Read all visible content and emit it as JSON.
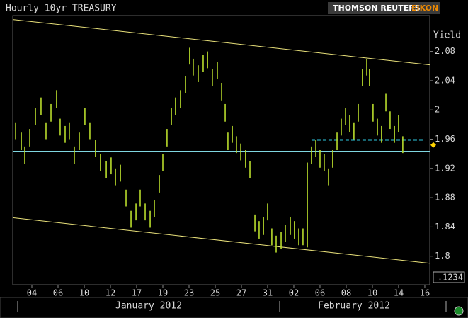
{
  "chart_data": {
    "type": "hilo",
    "title": "Hourly 10yr TREASURY",
    "brand": [
      "THOMSON REUTERS",
      "EIKON"
    ],
    "y_label": "Yield",
    "months": [
      "January 2012",
      "February 2012"
    ],
    "decimal_box": ".1234",
    "color": "#b9dc2c",
    "xlim": [
      -0.46,
      31.38
    ],
    "ylim": [
      1.761,
      2.129
    ],
    "yticks": [
      1.8,
      1.84,
      1.88,
      1.92,
      1.96,
      2,
      2.04,
      2.08
    ],
    "xticks": [
      {
        "value": 1,
        "label": "04"
      },
      {
        "value": 3,
        "label": "06"
      },
      {
        "value": 5,
        "label": "10"
      },
      {
        "value": 7,
        "label": "12"
      },
      {
        "value": 9,
        "label": "17"
      },
      {
        "value": 11,
        "label": "19"
      },
      {
        "value": 13,
        "label": "23"
      },
      {
        "value": 15,
        "label": "25"
      },
      {
        "value": 17,
        "label": "27"
      },
      {
        "value": 19,
        "label": "31"
      },
      {
        "value": 21,
        "label": "02"
      },
      {
        "value": 23,
        "label": "06"
      },
      {
        "value": 25,
        "label": "08"
      },
      {
        "value": 27,
        "label": "10"
      },
      {
        "value": 29,
        "label": "14"
      },
      {
        "value": 31,
        "label": "16"
      }
    ],
    "x": [
      -0.24,
      0.19,
      0.46,
      0.84,
      1.27,
      1.7,
      2.08,
      2.46,
      2.89,
      3.16,
      3.54,
      3.86,
      4.24,
      4.62,
      5.05,
      5.43,
      5.86,
      6.24,
      6.68,
      7.05,
      7.38,
      7.76,
      8.19,
      8.57,
      8.95,
      9.27,
      9.65,
      10.03,
      10.35,
      10.73,
      11.0,
      11.32,
      11.65,
      11.97,
      12.35,
      12.73,
      13.05,
      13.32,
      13.7,
      14.08,
      14.41,
      14.78,
      15.16,
      15.49,
      15.76,
      15.97,
      16.3,
      16.62,
      16.95,
      17.32,
      17.65,
      18.03,
      18.35,
      18.68,
      19.0,
      19.32,
      19.65,
      20.03,
      20.35,
      20.73,
      21.05,
      21.38,
      21.7,
      22.03,
      22.35,
      22.68,
      23.0,
      23.32,
      23.65,
      23.97,
      24.3,
      24.62,
      24.95,
      25.27,
      25.59,
      25.92,
      26.24,
      26.57,
      26.78,
      27.05,
      27.38,
      27.7,
      28.03,
      28.35,
      28.68,
      29.0,
      29.32
    ],
    "high": [
      1.983,
      1.969,
      1.95,
      1.974,
      2.003,
      2.017,
      1.983,
      2.008,
      2.027,
      1.988,
      1.978,
      1.983,
      1.95,
      1.969,
      2.003,
      1.983,
      1.959,
      1.94,
      1.93,
      1.935,
      1.92,
      1.925,
      1.891,
      1.862,
      1.872,
      1.891,
      1.872,
      1.862,
      1.877,
      1.911,
      1.94,
      1.974,
      2.003,
      2.017,
      2.027,
      2.046,
      2.085,
      2.07,
      2.061,
      2.075,
      2.08,
      2.056,
      2.066,
      2.037,
      2.008,
      1.969,
      1.978,
      1.964,
      1.954,
      1.945,
      1.93,
      1.857,
      1.848,
      1.853,
      1.872,
      1.838,
      1.828,
      1.833,
      1.843,
      1.853,
      1.848,
      1.838,
      1.838,
      1.928,
      1.95,
      1.959,
      1.945,
      1.94,
      1.92,
      1.945,
      1.969,
      1.988,
      2.003,
      1.993,
      1.983,
      2.008,
      2.056,
      2.07,
      2.056,
      2.008,
      1.988,
      1.978,
      2.022,
      1.998,
      1.978,
      1.993,
      1.964
    ],
    "low": [
      1.96,
      1.945,
      1.926,
      1.95,
      1.979,
      1.993,
      1.96,
      1.984,
      2.003,
      1.965,
      1.955,
      1.96,
      1.926,
      1.945,
      1.979,
      1.96,
      1.936,
      1.916,
      1.907,
      1.912,
      1.897,
      1.902,
      1.868,
      1.839,
      1.849,
      1.868,
      1.849,
      1.839,
      1.853,
      1.887,
      1.916,
      1.95,
      1.979,
      1.993,
      2.003,
      2.023,
      2.062,
      2.047,
      2.038,
      2.052,
      2.057,
      2.033,
      2.042,
      2.013,
      1.984,
      1.945,
      1.955,
      1.941,
      1.931,
      1.921,
      1.907,
      1.834,
      1.824,
      1.829,
      1.849,
      1.815,
      1.805,
      1.81,
      1.82,
      1.829,
      1.824,
      1.815,
      1.815,
      1.812,
      1.926,
      1.936,
      1.921,
      1.916,
      1.897,
      1.921,
      1.945,
      1.965,
      1.979,
      1.97,
      1.96,
      1.984,
      2.033,
      2.047,
      2.033,
      1.984,
      1.965,
      1.955,
      1.998,
      1.974,
      1.955,
      1.97,
      1.941
    ],
    "lines": [
      {
        "x": [
          -0.46,
          31.38
        ],
        "values": [
          2.1236,
          2.0616
        ],
        "color": "#e8e07a",
        "style": "solid"
      },
      {
        "x": [
          -0.46,
          31.38
        ],
        "values": [
          1.8526,
          1.7903
        ],
        "color": "#e8e07a",
        "style": "solid"
      },
      {
        "x": [
          -0.46,
          31.38
        ],
        "values": [
          1.9435,
          1.9435
        ],
        "color": "#7fd6e0",
        "style": "solid"
      },
      {
        "x": [
          22.35,
          30.84
        ],
        "values": [
          1.959,
          1.959
        ],
        "color": "#2ec8e0",
        "style": "dashed"
      }
    ],
    "last_value": 1.952
  }
}
